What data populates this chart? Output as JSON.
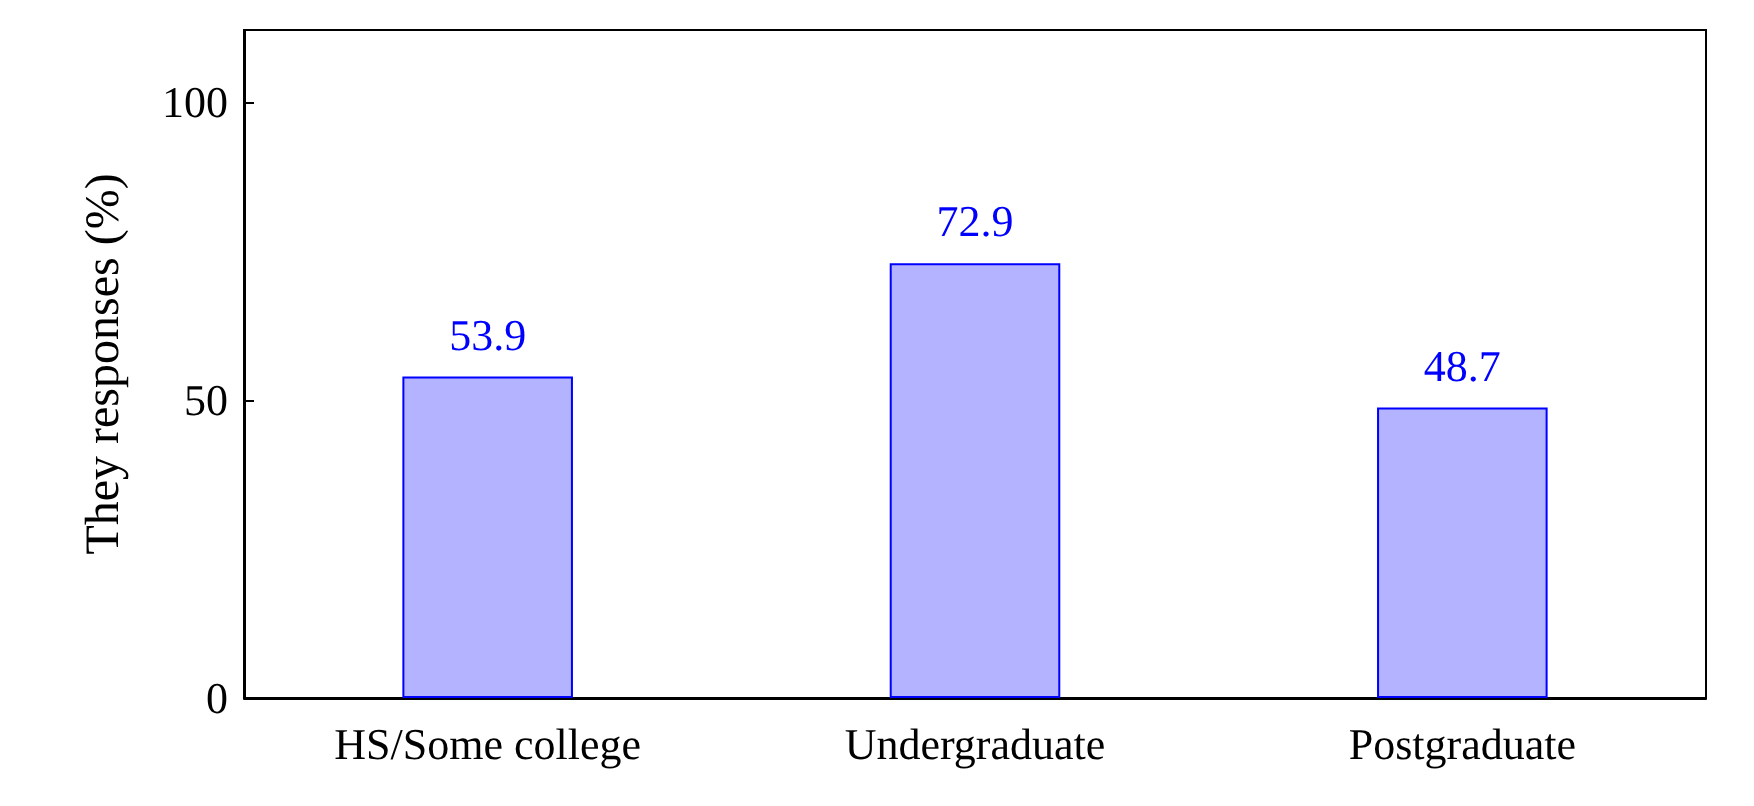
{
  "chart_data": {
    "type": "bar",
    "ylabel": "They responses (%)",
    "categories": [
      "HS/Some college",
      "Undergraduate",
      "Postgraduate"
    ],
    "series": [
      {
        "color": "#b3b3ff",
        "values": [
          53.9,
          72.9,
          48.7
        ]
      }
    ],
    "ylim": [
      0,
      112
    ],
    "yticks": [
      0,
      50,
      100
    ],
    "data_labels": true
  }
}
